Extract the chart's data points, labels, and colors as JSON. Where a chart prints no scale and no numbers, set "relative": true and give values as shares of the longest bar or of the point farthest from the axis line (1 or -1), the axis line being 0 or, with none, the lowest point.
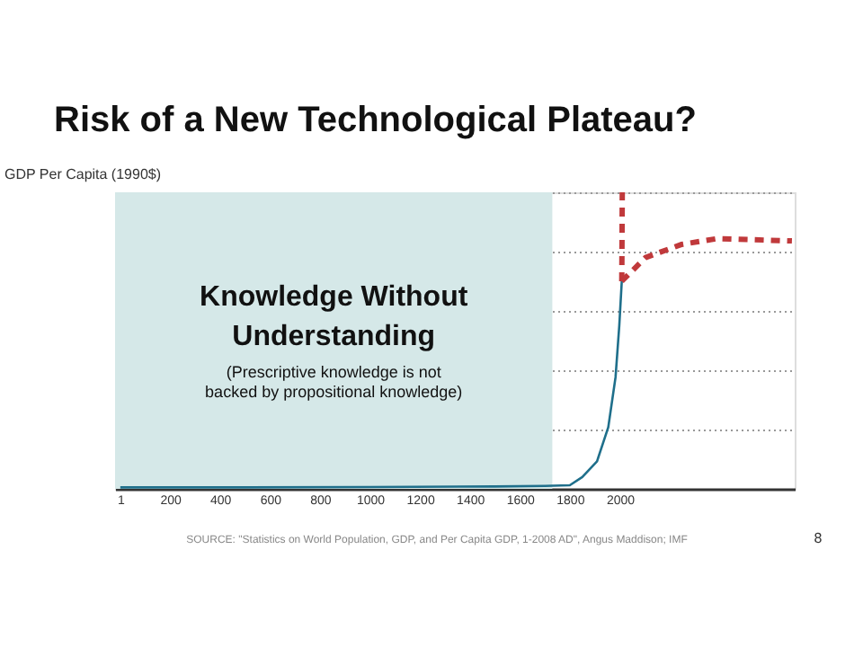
{
  "chart_data": {
    "type": "line",
    "title": "Risk of a New Technological Plateau?",
    "ylabel": "GDP Per Capita (1990$)",
    "relative": true,
    "xlim": [
      -20,
      2700
    ],
    "xticks": [
      1,
      200,
      400,
      600,
      800,
      1000,
      1200,
      1400,
      1600,
      1800,
      2000
    ],
    "series": [
      {
        "color": "#1f6f8b",
        "line_style": "solid",
        "x": [
          1,
          500,
          1000,
          1500,
          1700,
          1800,
          1850,
          1909,
          1954,
          1983,
          1998,
          2008
        ],
        "values": [
          0.005,
          0.005,
          0.006,
          0.008,
          0.01,
          0.012,
          0.04,
          0.093,
          0.208,
          0.376,
          0.55,
          0.7
        ]
      },
      {
        "color": "#c0393b",
        "line_style": "dashed",
        "x": [
          2008,
          2010
        ],
        "values": [
          0.7,
          1.0
        ]
      },
      {
        "color": "#c0393b",
        "line_style": "dashed",
        "x": [
          2008,
          2103,
          2246,
          2390,
          2689
        ],
        "values": [
          0.7,
          0.78,
          0.824,
          0.844,
          0.836
        ]
      }
    ],
    "bands": [
      {
        "axis": "x",
        "from": -20,
        "to": 1730,
        "label": "Knowledge Without Understanding",
        "color": "#d5e8e8"
      }
    ],
    "annotations": [
      "(Prescriptive knowledge is not backed by propositional knowledge)",
      "SOURCE: \"Statistics on World Population, GDP, and Per Capita GDP, 1-2008 AD\", Angus Maddison; IMF",
      "8"
    ],
    "grid": "y",
    "marker": "none"
  }
}
